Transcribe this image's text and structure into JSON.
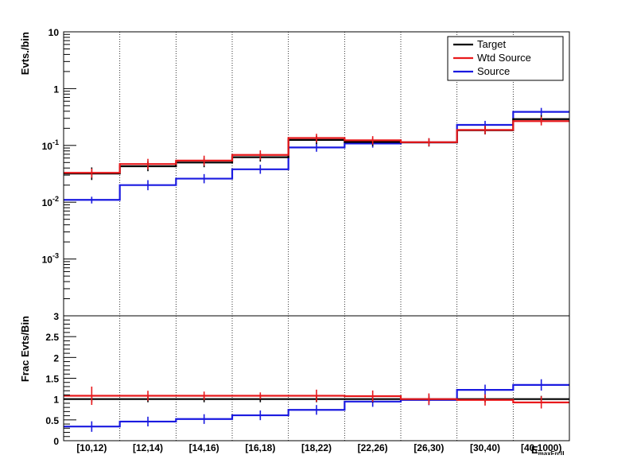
{
  "colors": {
    "target": "#000000",
    "wtd_source": "#e8191c",
    "source": "#1a1ae0",
    "frame": "#000000",
    "grid": "#000000"
  },
  "chart_data": [
    {
      "type": "histogram",
      "yscale": "log",
      "ylim": [
        0.0001,
        10
      ],
      "ylabel": "Evts./bin",
      "grid": "vertical-dotted",
      "legend_position": "top-right",
      "categories": [
        "[10,12)",
        "[12,14)",
        "[14,16)",
        "[16,18)",
        "[18,22)",
        "[22,26)",
        "[26,30)",
        "[30,40)",
        "[40,1000)"
      ],
      "y_ticks": [
        {
          "value": 10,
          "label": "10"
        },
        {
          "value": 1,
          "label": "1"
        },
        {
          "value": 0.1,
          "base": "10",
          "exp": "-1"
        },
        {
          "value": 0.01,
          "base": "10",
          "exp": "-2"
        },
        {
          "value": 0.001,
          "base": "10",
          "exp": "-3"
        }
      ],
      "series": [
        {
          "name": "Target",
          "key": "target",
          "values": [
            0.032,
            0.043,
            0.05,
            0.062,
            0.125,
            0.115,
            0.113,
            0.185,
            0.29
          ],
          "errors": [
            0.004,
            0.003,
            0.003,
            0.003,
            0.005,
            0.004,
            0.004,
            0.007,
            0.01
          ]
        },
        {
          "name": "Wtd Source",
          "key": "wtd_source",
          "values": [
            0.033,
            0.047,
            0.054,
            0.068,
            0.135,
            0.123,
            0.114,
            0.187,
            0.268
          ],
          "errors": [
            0.006,
            0.004,
            0.004,
            0.004,
            0.006,
            0.005,
            0.004,
            0.008,
            0.012
          ]
        },
        {
          "name": "Source",
          "key": "source",
          "values": [
            0.011,
            0.02,
            0.026,
            0.038,
            0.092,
            0.108,
            0.113,
            0.23,
            0.39
          ],
          "errors": [
            0.0015,
            0.0015,
            0.0015,
            0.002,
            0.004,
            0.004,
            0.004,
            0.008,
            0.012
          ]
        }
      ]
    },
    {
      "type": "histogram",
      "yscale": "linear",
      "ylim": [
        0,
        3
      ],
      "ylabel": "Frac Evts/Bin",
      "xlabel": "E",
      "xlabel_sub": "maxFrcll",
      "grid": "vertical-dotted",
      "categories": [
        "[10,12)",
        "[12,14)",
        "[14,16)",
        "[16,18)",
        "[18,22)",
        "[22,26)",
        "[26,30)",
        "[30,40)",
        "[40,1000)"
      ],
      "y_ticks": [
        {
          "value": 0,
          "label": "0"
        },
        {
          "value": 0.5,
          "label": "0.5"
        },
        {
          "value": 1,
          "label": "1"
        },
        {
          "value": 1.5,
          "label": "1.5"
        },
        {
          "value": 2,
          "label": "2"
        },
        {
          "value": 2.5,
          "label": "2.5"
        },
        {
          "value": 3,
          "label": "3"
        }
      ],
      "series": [
        {
          "key": "target",
          "values": [
            1.0,
            1.0,
            1.0,
            1.0,
            1.0,
            1.0,
            1.0,
            1.0,
            1.0
          ],
          "errors": [
            0,
            0,
            0,
            0,
            0,
            0,
            0,
            0,
            0
          ]
        },
        {
          "key": "wtd_source",
          "values": [
            1.08,
            1.08,
            1.08,
            1.08,
            1.08,
            1.07,
            1.0,
            0.98,
            0.92
          ],
          "errors": [
            0.22,
            0.12,
            0.1,
            0.08,
            0.07,
            0.06,
            0.06,
            0.06,
            0.07
          ]
        },
        {
          "key": "source",
          "values": [
            0.34,
            0.46,
            0.52,
            0.61,
            0.74,
            0.94,
            0.98,
            1.22,
            1.34
          ],
          "errors": [
            0.05,
            0.04,
            0.04,
            0.04,
            0.04,
            0.05,
            0.05,
            0.05,
            0.06
          ]
        }
      ]
    }
  ]
}
